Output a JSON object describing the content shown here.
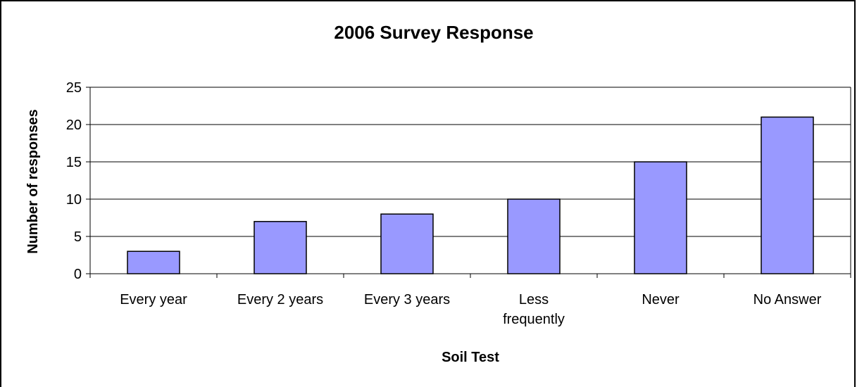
{
  "chart_data": {
    "type": "bar",
    "title": "2006 Survey Response",
    "xlabel": "Soil Test",
    "ylabel": "Number of responses",
    "categories": [
      [
        "Every year"
      ],
      [
        "Every 2 years"
      ],
      [
        "Every 3 years"
      ],
      [
        "Less",
        "frequently"
      ],
      [
        "Never"
      ],
      [
        "No Answer"
      ]
    ],
    "values": [
      3,
      7,
      8,
      10,
      15,
      21
    ],
    "ylim": [
      0,
      25
    ],
    "yticks": [
      0,
      5,
      10,
      15,
      20,
      25
    ],
    "grid": "horizontal",
    "legend": "none",
    "colors": {
      "bar_fill": "#9999FF",
      "bar_stroke": "#000000",
      "grid": "#000000",
      "background": "#FFFFFF"
    }
  }
}
